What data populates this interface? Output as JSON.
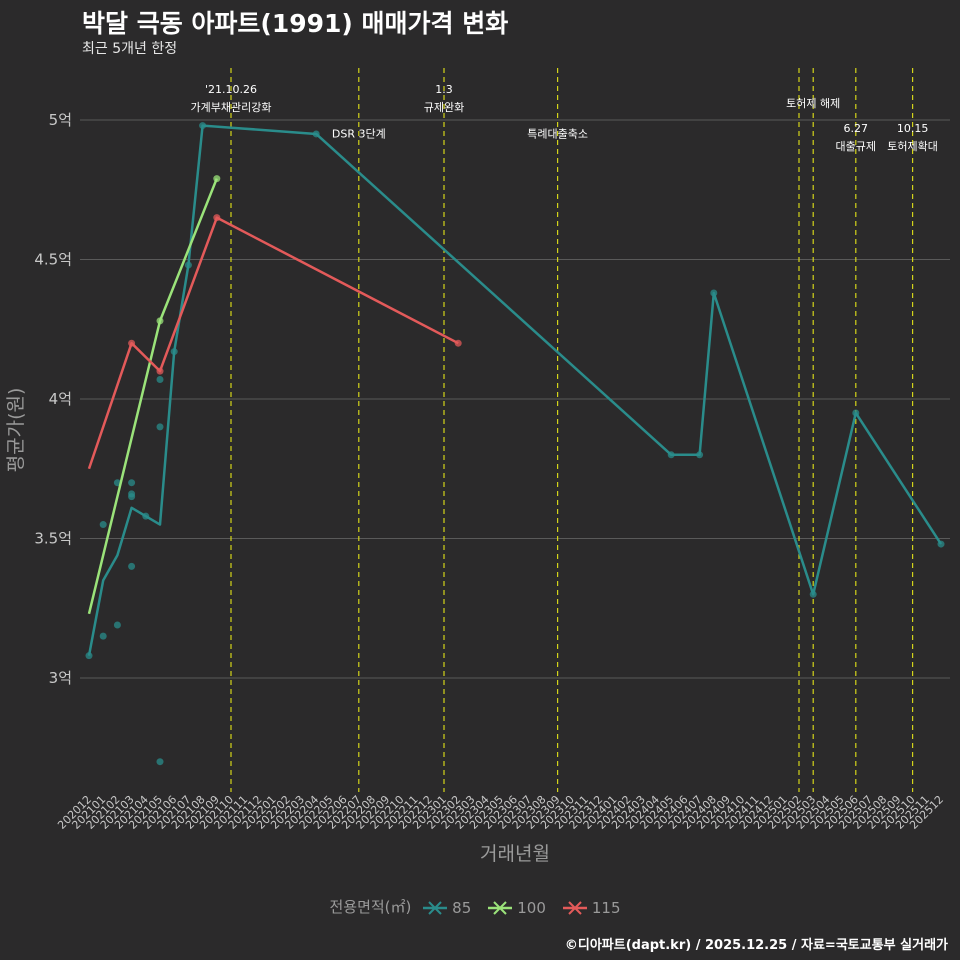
{
  "title": "박달 극동 아파트(1991) 매매가격 변화",
  "subtitle": "최근 5개년 한정",
  "caption": "©디아파트(dapt.kr) / 2025.12.25 / 자료=국토교통부 실거래가",
  "chart_data": {
    "type": "line",
    "xlabel": "거래년월",
    "ylabel": "평균가(원)",
    "ylim": [
      2.6,
      5.2
    ],
    "yticks": [
      3,
      3.5,
      4,
      4.5,
      5
    ],
    "ytick_labels": [
      "3억",
      "3.5억",
      "4억",
      "4.5억",
      "5억"
    ],
    "categories": [
      "202012",
      "202101",
      "202102",
      "202103",
      "202104",
      "202105",
      "202106",
      "202107",
      "202108",
      "202109",
      "202110",
      "202111",
      "202112",
      "202201",
      "202202",
      "202203",
      "202204",
      "202205",
      "202206",
      "202207",
      "202208",
      "202209",
      "202210",
      "202211",
      "202212",
      "202301",
      "202302",
      "202303",
      "202304",
      "202305",
      "202306",
      "202307",
      "202308",
      "202309",
      "202310",
      "202311",
      "202312",
      "202401",
      "202402",
      "202403",
      "202404",
      "202405",
      "202406",
      "202407",
      "202408",
      "202409",
      "202410",
      "202411",
      "202412",
      "202501",
      "202502",
      "202503",
      "202504",
      "202505",
      "202506",
      "202507",
      "202508",
      "202509",
      "202510",
      "202511",
      "202512"
    ],
    "legend_title": "전용면적(㎡)",
    "series": [
      {
        "name": "85",
        "color": "#2a8c8b",
        "line": [
          [
            "202012",
            3.08
          ],
          [
            "202101",
            3.35
          ],
          [
            "202102",
            3.44
          ],
          [
            "202103",
            3.61
          ],
          [
            "202104",
            3.58
          ],
          [
            "202105",
            3.55
          ],
          [
            "202106",
            4.17
          ],
          [
            "202107",
            4.48
          ],
          [
            "202108",
            4.98
          ],
          [
            "202204",
            4.95
          ],
          [
            "202405",
            3.8
          ],
          [
            "202407",
            3.8
          ],
          [
            "202408",
            4.38
          ],
          [
            "202503",
            3.3
          ],
          [
            "202506",
            3.95
          ],
          [
            "202512",
            3.48
          ]
        ],
        "points": [
          [
            "202012",
            3.08
          ],
          [
            "202101",
            3.55
          ],
          [
            "202101",
            3.15
          ],
          [
            "202102",
            3.7
          ],
          [
            "202102",
            3.19
          ],
          [
            "202103",
            3.7
          ],
          [
            "202103",
            3.66
          ],
          [
            "202103",
            3.65
          ],
          [
            "202103",
            3.4
          ],
          [
            "202104",
            3.58
          ],
          [
            "202105",
            4.07
          ],
          [
            "202105",
            3.9
          ],
          [
            "202105",
            2.7
          ],
          [
            "202106",
            4.17
          ],
          [
            "202107",
            4.48
          ],
          [
            "202108",
            4.98
          ],
          [
            "202204",
            4.95
          ],
          [
            "202405",
            3.8
          ],
          [
            "202407",
            3.8
          ],
          [
            "202408",
            4.38
          ],
          [
            "202503",
            3.3
          ],
          [
            "202506",
            3.95
          ],
          [
            "202512",
            3.48
          ]
        ]
      },
      {
        "name": "100",
        "color": "#9be37a",
        "line": [
          [
            "202012",
            3.23
          ],
          [
            "202105",
            4.28
          ],
          [
            "202109",
            4.79
          ]
        ],
        "points": [
          [
            "202105",
            4.28
          ],
          [
            "202109",
            4.79
          ]
        ]
      },
      {
        "name": "115",
        "color": "#e35a5a",
        "line": [
          [
            "202012",
            3.75
          ],
          [
            "202103",
            4.2
          ],
          [
            "202105",
            4.1
          ],
          [
            "202109",
            4.65
          ],
          [
            "202302",
            4.2
          ]
        ],
        "points": [
          [
            "202103",
            4.2
          ],
          [
            "202105",
            4.1
          ],
          [
            "202109",
            4.65
          ],
          [
            "202302",
            4.2
          ]
        ]
      }
    ],
    "events": [
      {
        "x": "202110",
        "label1": "'21.10.26",
        "label2": "가계부채관리강화",
        "y": 5.09
      },
      {
        "x": "202207",
        "label1": "",
        "label2": "DSR 3단계",
        "y": 4.98
      },
      {
        "x": "202301",
        "label1": "1.3",
        "label2": "규제완화",
        "y": 5.09
      },
      {
        "x": "202309",
        "label1": "",
        "label2": "특례대출축소",
        "y": 4.98
      },
      {
        "x": "202502",
        "label1": "",
        "label2": "",
        "y": 5.09
      },
      {
        "x": "202503",
        "label1": "",
        "label2": "토허제 해제",
        "y": 5.09
      },
      {
        "x": "202506",
        "label1": "6.27",
        "label2": "대출규제",
        "y": 4.95
      },
      {
        "x": "202510",
        "label1": "10.15",
        "label2": "토허제확대",
        "y": 4.95
      }
    ]
  },
  "colors": {
    "background": "#2b2a2b",
    "grid": "#5a5a5a",
    "event": "#d4d41a",
    "axis_text": "#c8c8c8"
  }
}
